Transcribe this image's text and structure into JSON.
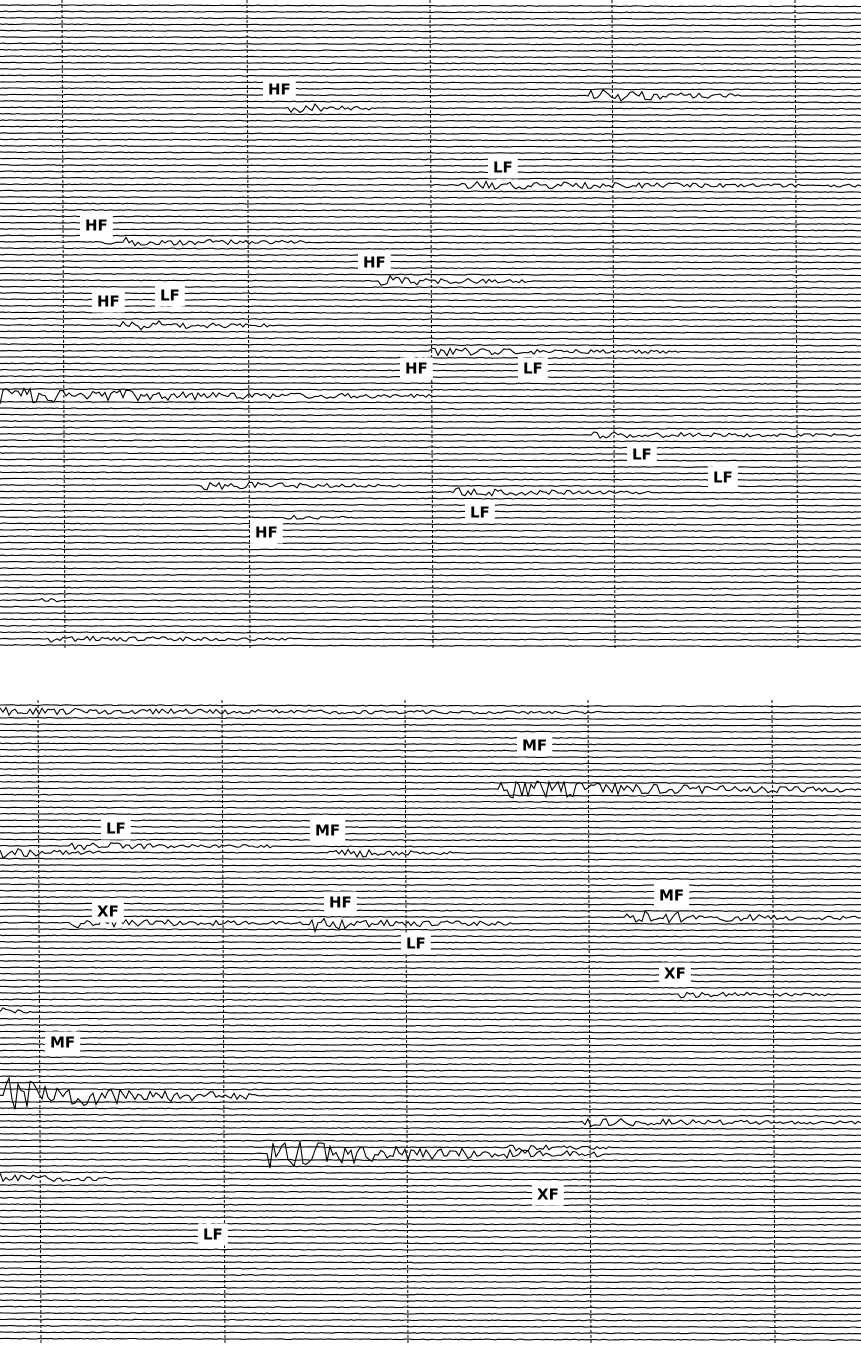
{
  "panels": [
    {
      "labels": [
        "HF",
        "LF",
        "HF",
        "HF",
        "HF",
        "LF",
        "HF",
        "LF",
        "LF",
        "LF",
        "LF",
        "HF"
      ]
    },
    {
      "labels": [
        "MF",
        "LF",
        "MF",
        "HF",
        "MF",
        "XF",
        "LF",
        "XF",
        "MF",
        "XF",
        "LF"
      ]
    }
  ]
}
